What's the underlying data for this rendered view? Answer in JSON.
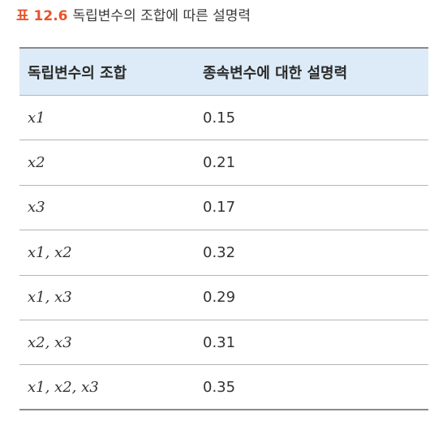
{
  "caption": {
    "label": "표 12.6",
    "title": "독립변수의 조합에 따른 설명력"
  },
  "table": {
    "headers": [
      "독립변수의 조합",
      "종속변수에 대한 설명력"
    ],
    "rows": [
      {
        "combination": "x1",
        "value": "0.15"
      },
      {
        "combination": "x2",
        "value": "0.21"
      },
      {
        "combination": "x3",
        "value": "0.17"
      },
      {
        "combination": "x1, x2",
        "value": "0.32"
      },
      {
        "combination": "x1, x3",
        "value": "0.29"
      },
      {
        "combination": "x2, x3",
        "value": "0.31"
      },
      {
        "combination": "x1, x2, x3",
        "value": "0.35"
      }
    ]
  },
  "colors": {
    "label": "#e8532b",
    "header_bg": "#dcebf7"
  }
}
